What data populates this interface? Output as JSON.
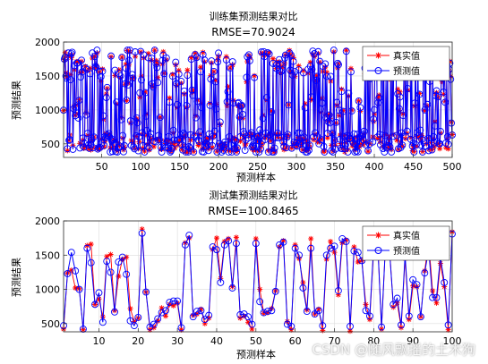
{
  "watermark": "CSDN @随风飘摇的土木狗",
  "chart_data": [
    {
      "type": "line",
      "title": "训练集预测结果对比",
      "subtitle": "RMSE=70.9024",
      "xlabel": "预测样本",
      "ylabel": "预测结果",
      "xlim": [
        1,
        500
      ],
      "ylim": [
        300,
        2000
      ],
      "xticks": [
        50,
        100,
        150,
        200,
        250,
        300,
        350,
        400,
        450,
        500
      ],
      "yticks": [
        500,
        1000,
        1500,
        2000
      ],
      "grid": true,
      "legend_position": "top-right",
      "n_points": 500,
      "value_range": [
        380,
        1880
      ],
      "series": [
        {
          "name": "真实值",
          "color": "#ff0000",
          "marker": "asterisk"
        },
        {
          "name": "预测值",
          "color": "#0000ff",
          "marker": "circle"
        }
      ]
    },
    {
      "type": "line",
      "title": "测试集预测结果对比",
      "subtitle": "RMSE=100.8465",
      "xlabel": "预测样本",
      "ylabel": "预测结果",
      "xlim": [
        1,
        100
      ],
      "ylim": [
        380,
        2000
      ],
      "xticks": [
        10,
        20,
        30,
        40,
        50,
        60,
        70,
        80,
        90,
        100
      ],
      "yticks": [
        500,
        1000,
        1500,
        2000
      ],
      "grid": true,
      "legend_position": "top-right",
      "x": [
        1,
        2,
        3,
        4,
        5,
        6,
        7,
        8,
        9,
        10,
        11,
        12,
        13,
        14,
        15,
        16,
        17,
        18,
        19,
        20,
        21,
        22,
        23,
        24,
        25,
        26,
        27,
        28,
        29,
        30,
        31,
        32,
        33,
        34,
        35,
        36,
        37,
        38,
        39,
        40,
        41,
        42,
        43,
        44,
        45,
        46,
        47,
        48,
        49,
        50,
        51,
        52,
        53,
        54,
        55,
        56,
        57,
        58,
        59,
        60,
        61,
        62,
        63,
        64,
        65,
        66,
        67,
        68,
        69,
        70,
        71,
        72,
        73,
        74,
        75,
        76,
        77,
        78,
        79,
        80,
        81,
        82,
        83,
        84,
        85,
        86,
        87,
        88,
        89,
        90,
        91,
        92,
        93,
        94,
        95,
        96,
        97,
        98,
        99,
        100
      ],
      "series": [
        {
          "name": "真实值",
          "color": "#ff0000",
          "marker": "asterisk",
          "values": [
            420,
            1240,
            1280,
            1020,
            1010,
            410,
            1640,
            1660,
            780,
            860,
            600,
            1480,
            1510,
            690,
            1190,
            1440,
            1470,
            720,
            530,
            580,
            1880,
            960,
            410,
            440,
            540,
            730,
            610,
            780,
            760,
            800,
            410,
            1680,
            1750,
            620,
            640,
            710,
            500,
            580,
            1580,
            1750,
            1160,
            1700,
            1740,
            1040,
            1760,
            580,
            610,
            520,
            420,
            1740,
            1000,
            650,
            660,
            720,
            980,
            1620,
            1710,
            530,
            410,
            1650,
            1450,
            1100,
            700,
            1740,
            640,
            710,
            400,
            1440,
            1700,
            1540,
            920,
            1680,
            1720,
            390,
            1620,
            1400,
            1420,
            780,
            560,
            1590,
            1740,
            420,
            1640,
            1640,
            740,
            800,
            440,
            1450,
            560,
            1050,
            1040,
            600,
            1270,
            1710,
            980,
            800,
            1380,
            1040,
            410,
            1840
          ]
        },
        {
          "name": "预测值",
          "color": "#0000ff",
          "marker": "circle",
          "values": [
            470,
            1230,
            1540,
            1270,
            1000,
            420,
            1600,
            1390,
            780,
            950,
            520,
            1410,
            1250,
            670,
            1400,
            1470,
            1220,
            540,
            470,
            590,
            1820,
            960,
            450,
            490,
            570,
            660,
            690,
            810,
            830,
            830,
            440,
            1650,
            1790,
            600,
            680,
            690,
            560,
            620,
            1620,
            1580,
            1100,
            1650,
            1710,
            1020,
            1670,
            630,
            640,
            600,
            490,
            1670,
            820,
            660,
            680,
            690,
            970,
            1650,
            1690,
            490,
            460,
            1600,
            1500,
            1020,
            680,
            1600,
            640,
            690,
            470,
            1500,
            1600,
            1630,
            980,
            1740,
            1700,
            460,
            1560,
            1540,
            1420,
            690,
            610,
            1630,
            1700,
            450,
            1630,
            1590,
            780,
            870,
            480,
            1500,
            610,
            1140,
            1070,
            600,
            1240,
            1590,
            880,
            880,
            1470,
            1100,
            480,
            1810
          ]
        }
      ]
    }
  ]
}
